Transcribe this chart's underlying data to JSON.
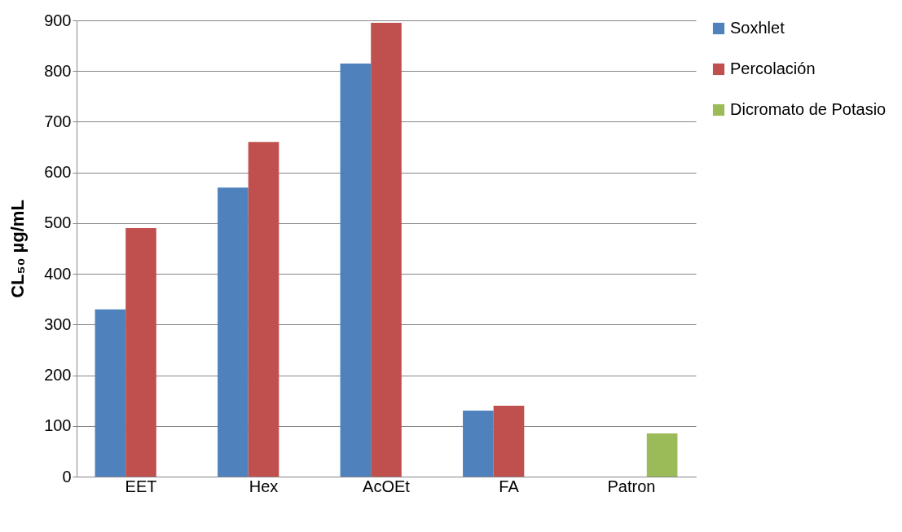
{
  "chart_data": {
    "type": "bar",
    "ylabel": "CL₅₀ µg/mL",
    "categories": [
      "EET",
      "Hex",
      "AcOEt",
      "FA",
      "Patron"
    ],
    "series": [
      {
        "name": "Soxhlet",
        "color": "#4f81bd",
        "values": [
          330,
          570,
          815,
          130,
          null
        ]
      },
      {
        "name": "Percolación",
        "color": "#c0504d",
        "values": [
          490,
          660,
          895,
          140,
          null
        ]
      },
      {
        "name": "Dicromato de Potasio",
        "color": "#9bbb59",
        "values": [
          null,
          null,
          null,
          null,
          85
        ]
      }
    ],
    "ylim": [
      0,
      900
    ],
    "yticks": [
      0,
      100,
      200,
      300,
      400,
      500,
      600,
      700,
      800,
      900
    ],
    "grid": "y",
    "legend": "right"
  }
}
